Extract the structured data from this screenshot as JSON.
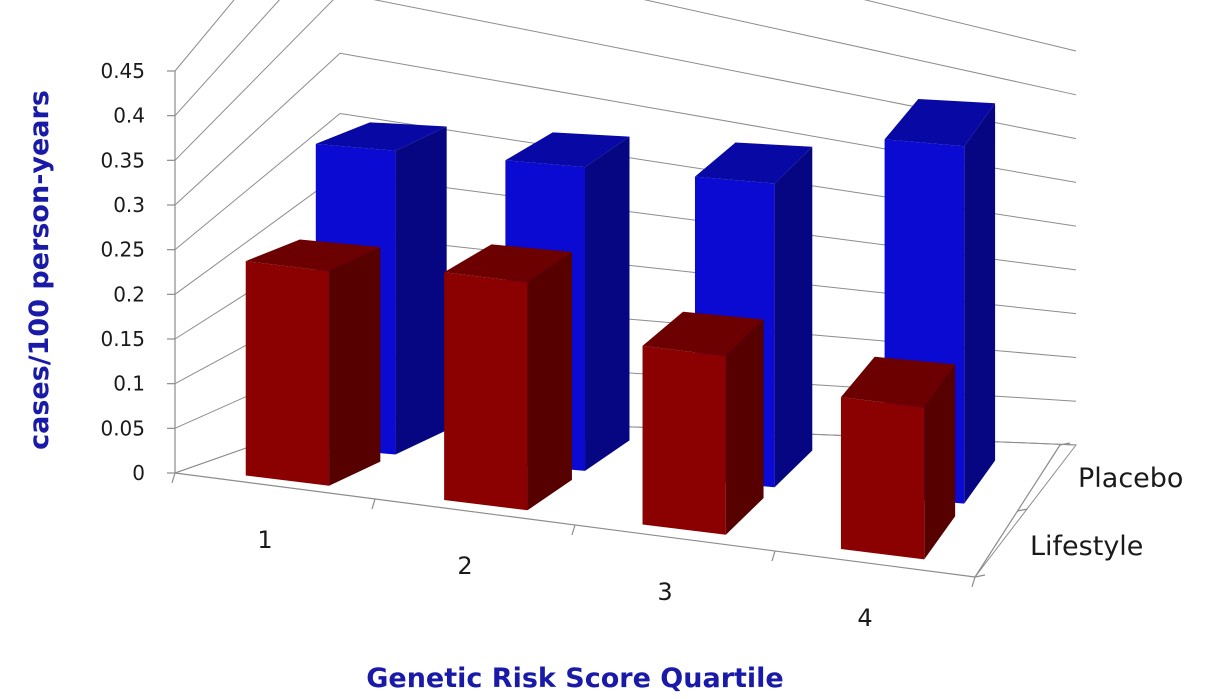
{
  "chart_data": {
    "type": "bar",
    "style": "3d-clustered-depth",
    "title": "",
    "xlabel": "Genetic Risk Score Quartile",
    "ylabel": "cases/100 person-years",
    "categories": [
      "1",
      "2",
      "3",
      "4"
    ],
    "ylim": [
      0,
      0.45
    ],
    "yticks": [
      "0",
      "0.05",
      "0.1",
      "0.15",
      "0.2",
      "0.25",
      "0.3",
      "0.35",
      "0.4",
      "0.45"
    ],
    "grid": true,
    "series": [
      {
        "name": "Lifestyle",
        "values": [
          0.24,
          0.255,
          0.2,
          0.17
        ],
        "color": "#8b0000"
      },
      {
        "name": "Placebo",
        "values": [
          0.34,
          0.34,
          0.34,
          0.4
        ],
        "color": "#0a0ad2"
      }
    ],
    "label_color": "#1a1aa8"
  }
}
